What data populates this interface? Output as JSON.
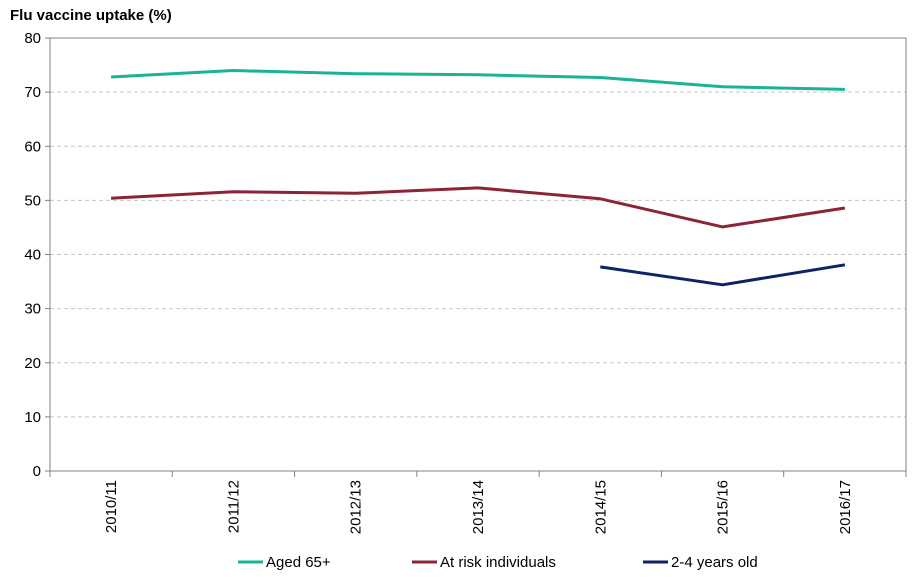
{
  "chart_data": {
    "type": "line",
    "title": "Flu vaccine uptake (%)",
    "xlabel": "",
    "ylabel": "",
    "ylim": [
      0,
      80
    ],
    "yticks": [
      0,
      10,
      20,
      30,
      40,
      50,
      60,
      70,
      80
    ],
    "categories": [
      "2010/11",
      "2011/12",
      "2012/13",
      "2013/14",
      "2014/15",
      "2015/16",
      "2016/17"
    ],
    "grid": true,
    "legend_position": "bottom",
    "series": [
      {
        "name": "Aged 65+",
        "color": "#1ab394",
        "values": [
          72.8,
          74.0,
          73.4,
          73.2,
          72.7,
          71.0,
          70.5
        ]
      },
      {
        "name": "At risk individuals",
        "color": "#8b2436",
        "values": [
          50.4,
          51.6,
          51.3,
          52.3,
          50.3,
          45.1,
          48.6
        ]
      },
      {
        "name": "2-4 years old",
        "color": "#0c2366",
        "values": [
          null,
          null,
          null,
          null,
          37.7,
          34.4,
          38.1
        ]
      }
    ]
  }
}
